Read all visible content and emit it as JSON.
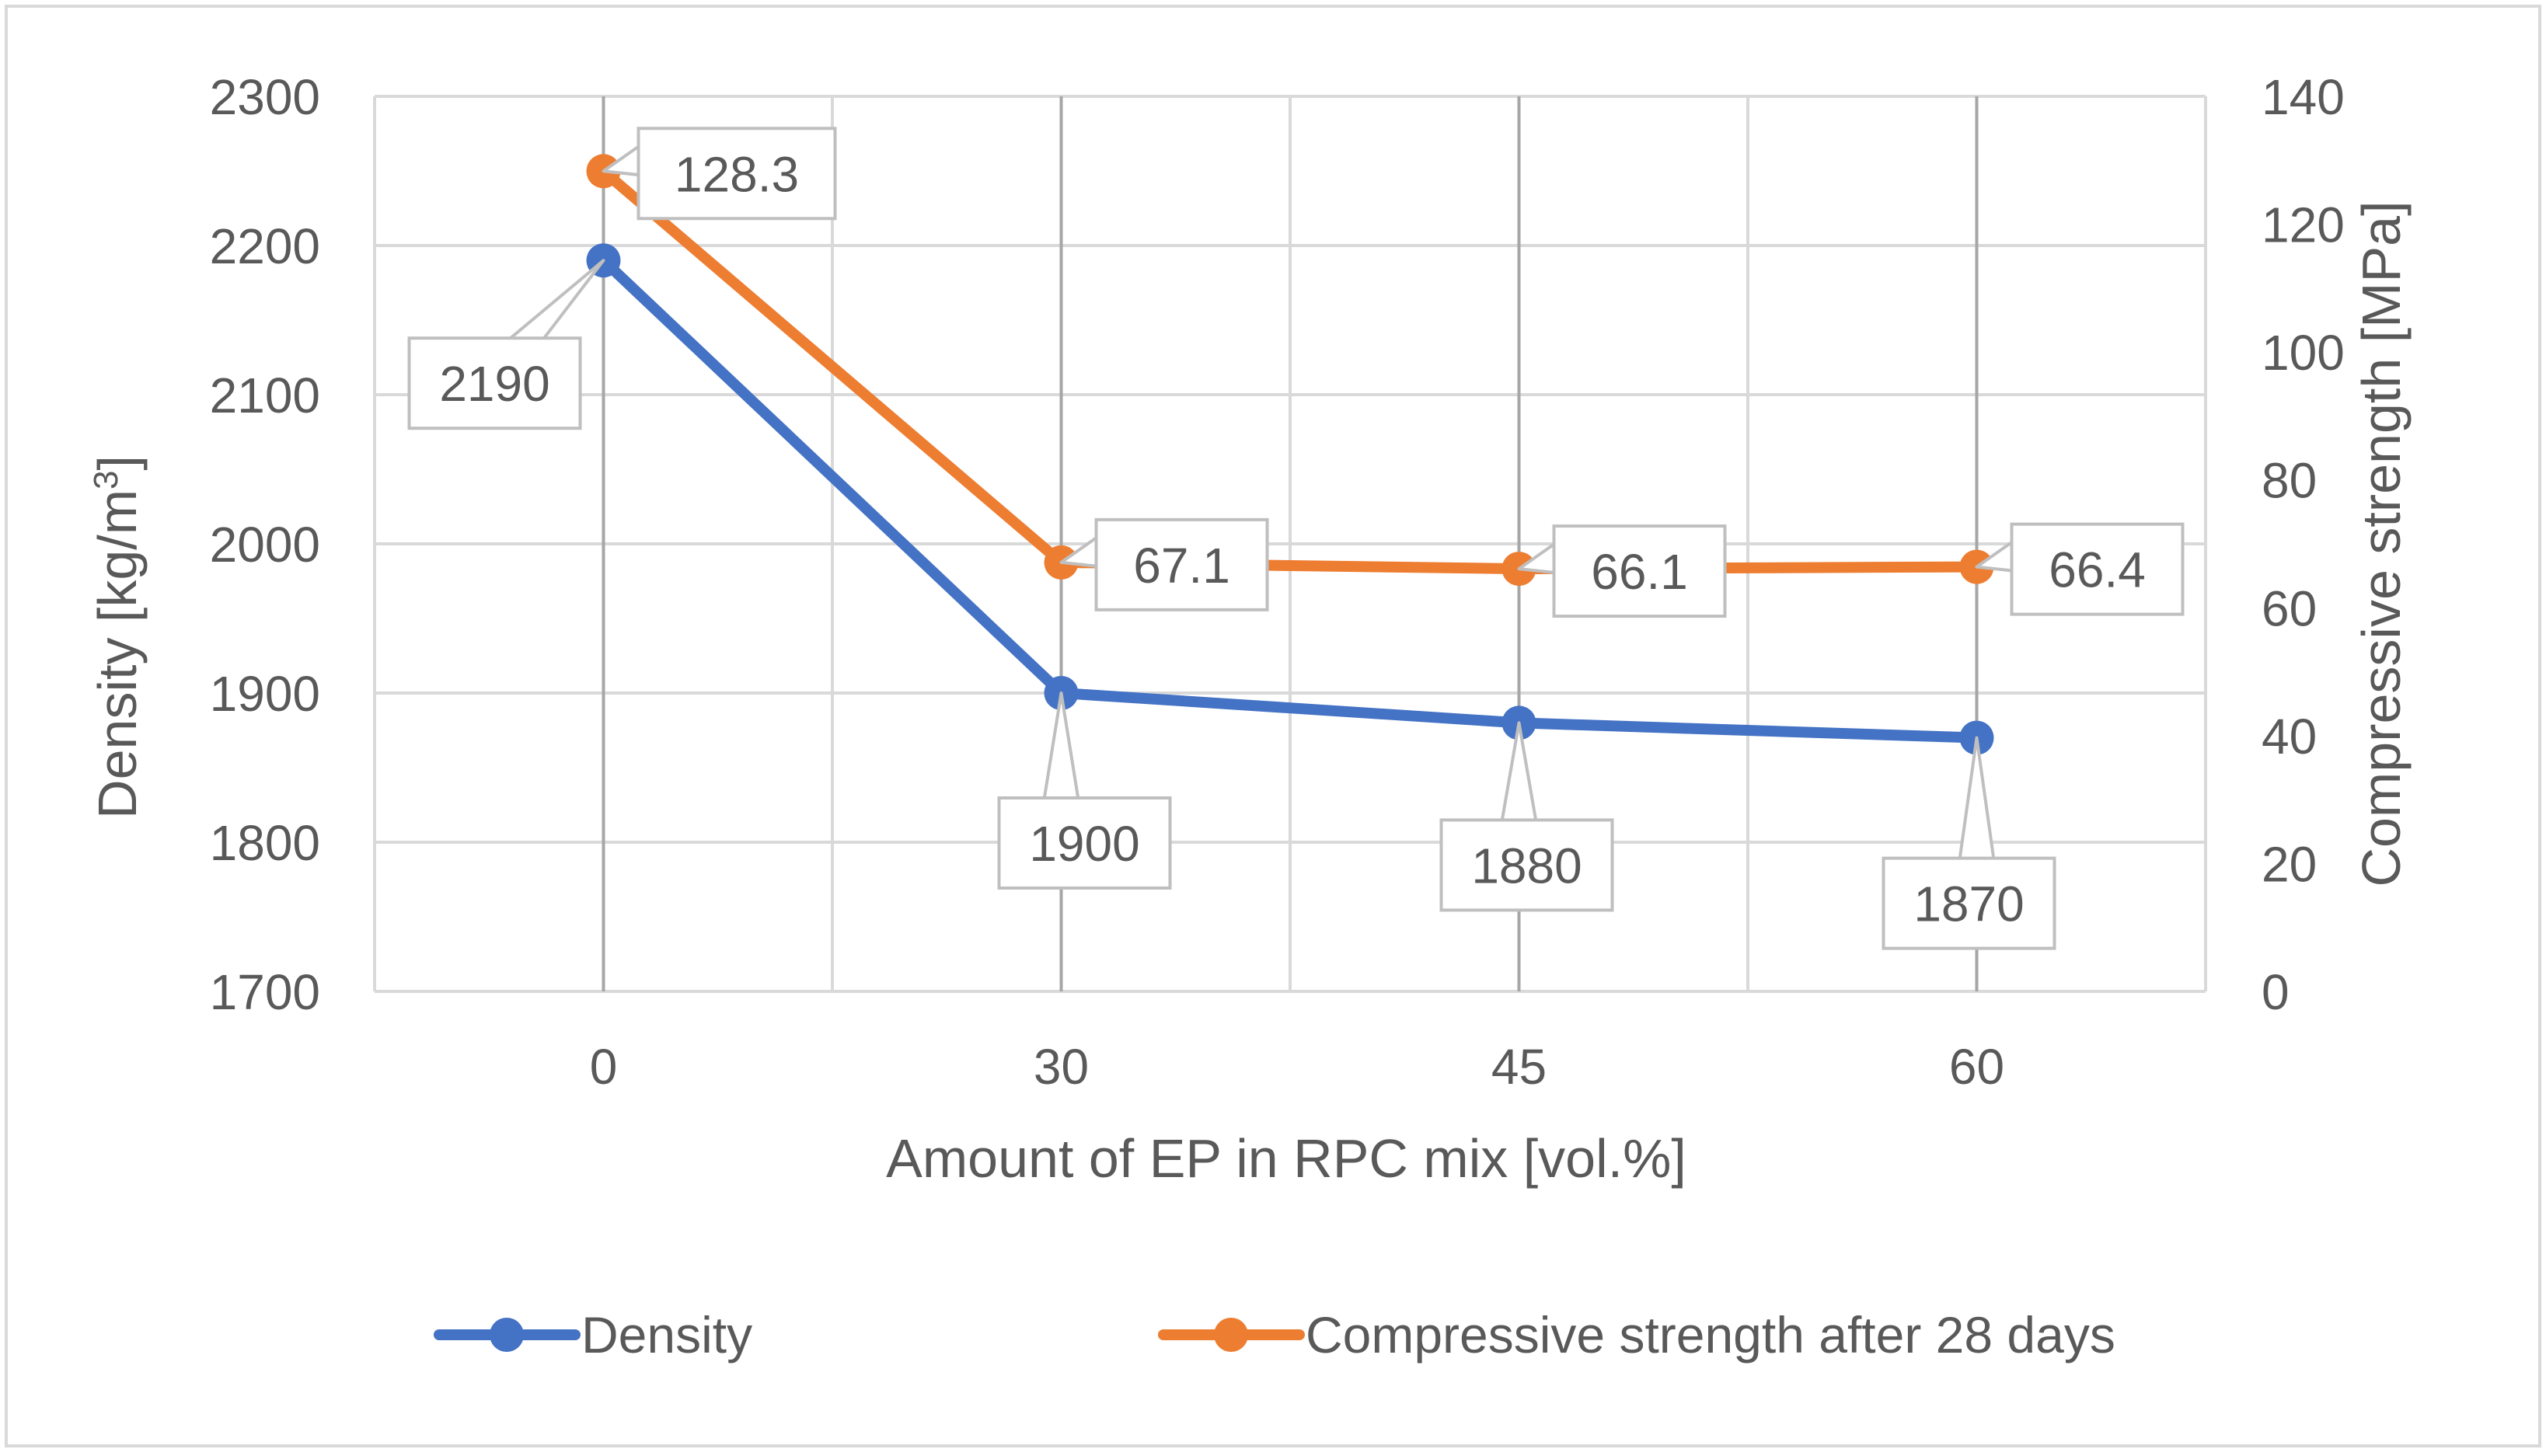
{
  "colors": {
    "density": "#4472C4",
    "strength": "#ED7D31",
    "grid": "#D9D9D9",
    "text": "#595959",
    "label_border": "#BFBFBF"
  },
  "chart_data": {
    "type": "line",
    "title": "",
    "xlabel": "Amount of EP in RPC mix [vol.%]",
    "ylabel_left_prefix": "Density [kg/m",
    "ylabel_left_sup": "3",
    "ylabel_left_suffix": "]",
    "ylabel_right": "Compressive strength [MPa]",
    "categories": [
      "0",
      "30",
      "45",
      "60"
    ],
    "y_left": {
      "min": 1700,
      "max": 2300,
      "ticks": [
        "1700",
        "1800",
        "1900",
        "2000",
        "2100",
        "2200",
        "2300"
      ]
    },
    "y_right": {
      "min": 0,
      "max": 140,
      "ticks": [
        "0",
        "20",
        "40",
        "60",
        "80",
        "100",
        "120",
        "140"
      ]
    },
    "series": [
      {
        "name": "Density",
        "axis": "left",
        "values": [
          2190,
          1900,
          1880,
          1870
        ],
        "labels": [
          "2190",
          "1900",
          "1880",
          "1870"
        ]
      },
      {
        "name": "Compressive strength after 28 days",
        "axis": "right",
        "values": [
          128.3,
          67.1,
          66.1,
          66.4
        ],
        "labels": [
          "128.3",
          "67.1",
          "66.1",
          "66.4"
        ]
      }
    ],
    "legend": {
      "position": "bottom",
      "entries": [
        "Density",
        "Compressive strength after 28 days"
      ]
    },
    "grid": true
  }
}
